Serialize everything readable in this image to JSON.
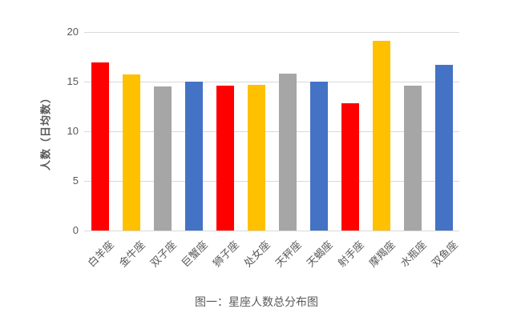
{
  "figure": {
    "caption": "图一：星座人数总分布图"
  },
  "chart_data": {
    "type": "bar",
    "title": "",
    "categories": [
      "白羊座",
      "金牛座",
      "双子座",
      "巨蟹座",
      "狮子座",
      "处女座",
      "天秤座",
      "天蝎座",
      "射手座",
      "摩羯座",
      "水瓶座",
      "双鱼座"
    ],
    "values": [
      16.9,
      15.7,
      14.5,
      15.0,
      14.6,
      14.7,
      15.8,
      15.0,
      12.8,
      19.1,
      14.6,
      16.7
    ],
    "color_cycle": [
      "#ff0000",
      "#ffc000",
      "#a6a6a6",
      "#4472c4"
    ],
    "xlabel": "",
    "ylabel": "人数（日均数）",
    "yticks": [
      0,
      5,
      10,
      15,
      20
    ],
    "ylim": [
      0,
      20
    ],
    "grid": true,
    "legend": false,
    "gridline_color": "#d9d9d9",
    "text_color": "#595959"
  }
}
